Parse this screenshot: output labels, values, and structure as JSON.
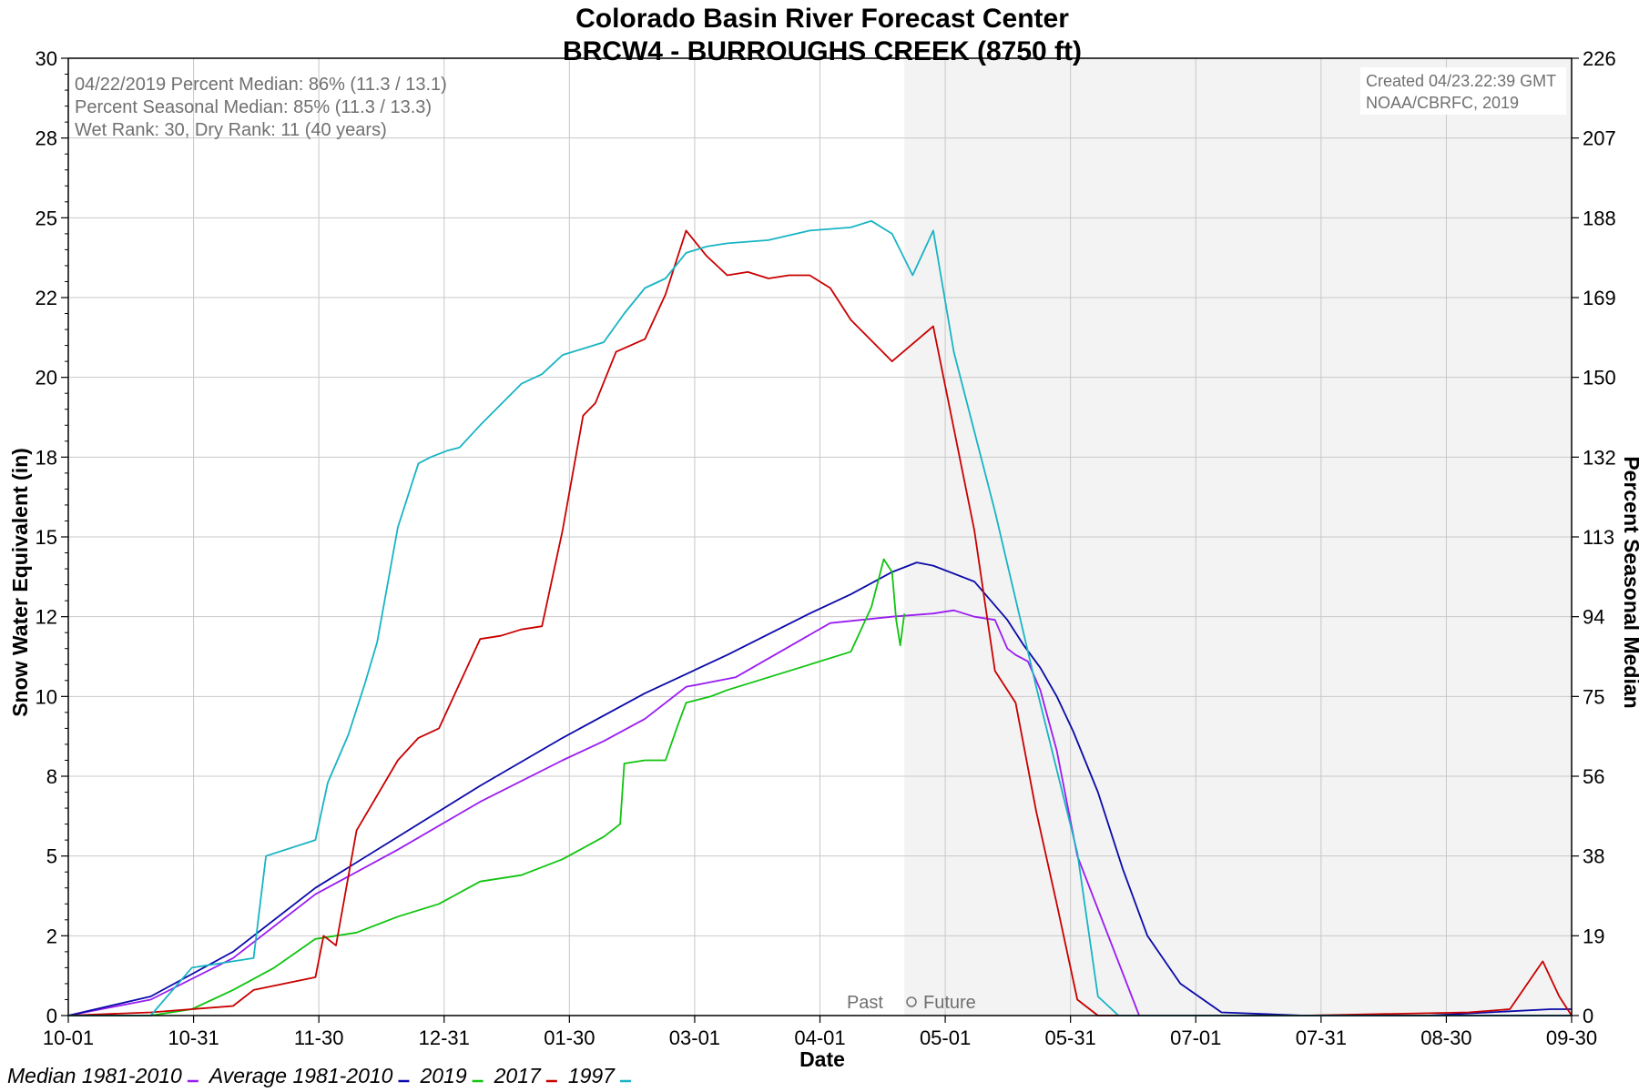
{
  "chart_data": {
    "type": "line",
    "title": "Colorado Basin River Forecast Center",
    "subtitle": "BRCW4 - BURROUGHS CREEK (8750 ft)",
    "xlabel": "Date",
    "ylabel": "Snow Water Equivalent (in)",
    "ylabel_right": "Percent Seasonal Median",
    "x_ticks": [
      "10-01",
      "10-31",
      "11-30",
      "12-31",
      "01-30",
      "03-01",
      "04-01",
      "05-01",
      "05-31",
      "07-01",
      "07-31",
      "08-30",
      "09-30"
    ],
    "ylim": [
      0,
      30
    ],
    "y_ticks": [
      "0",
      "2",
      "5",
      "8",
      "10",
      "12",
      "15",
      "18",
      "20",
      "22",
      "25",
      "28",
      "30"
    ],
    "y_right_ticks": [
      "0",
      "19",
      "38",
      "56",
      "75",
      "94",
      "113",
      "132",
      "150",
      "169",
      "188",
      "207",
      "226"
    ],
    "grid": true,
    "future_shading_start": "04-22",
    "past_label": "Past",
    "future_label": "Future",
    "info": [
      "04/22/2019 Percent Median: 86% (11.3 / 13.1)",
      "Percent Seasonal Median: 85% (11.3 / 13.3)",
      "Wet Rank: 30, Dry Rank: 11  (40 years)"
    ],
    "credit": [
      "Created 04/23.22:39 GMT",
      "NOAA/CBRFC, 2019"
    ],
    "legend_placement": "bottom",
    "series": [
      {
        "name": "Median 1981-2010",
        "color": "#9a1cf0",
        "x": [
          0,
          20,
          40,
          60,
          80,
          100,
          120,
          130,
          140,
          150,
          162,
          185,
          200,
          210,
          215,
          220,
          225,
          228,
          230,
          233,
          236,
          240,
          245,
          260,
          280,
          300,
          365
        ],
        "y": [
          0,
          0.5,
          1.8,
          3.8,
          5.2,
          6.7,
          8.0,
          8.6,
          9.3,
          10.3,
          10.6,
          12.3,
          12.5,
          12.6,
          12.7,
          12.5,
          12.4,
          11.5,
          11.3,
          11.1,
          10.2,
          8.3,
          5.0,
          0,
          0,
          0,
          0
        ]
      },
      {
        "name": "Average 1981-2010",
        "color": "#0a0aa8",
        "x": [
          0,
          20,
          40,
          60,
          80,
          100,
          120,
          140,
          160,
          180,
          190,
          200,
          206,
          210,
          220,
          228,
          232,
          236,
          240,
          244,
          250,
          256,
          262,
          270,
          280,
          300,
          330,
          360,
          365
        ],
        "y": [
          0,
          0.6,
          2.0,
          4.0,
          5.6,
          7.2,
          8.7,
          10.1,
          11.3,
          12.6,
          13.2,
          13.9,
          14.2,
          14.1,
          13.6,
          12.4,
          11.6,
          10.9,
          10.0,
          8.9,
          7.0,
          4.6,
          2.5,
          1.0,
          0.1,
          0,
          0,
          0.2,
          0.2
        ]
      },
      {
        "name": "2019",
        "color": "#10c410",
        "x": [
          0,
          20,
          30,
          40,
          50,
          60,
          70,
          80,
          90,
          100,
          110,
          120,
          130,
          134,
          135,
          140,
          145,
          148,
          150,
          156,
          160,
          170,
          180,
          190,
          195,
          198,
          200,
          201,
          202,
          203
        ],
        "y": [
          0,
          0,
          0.2,
          0.8,
          1.5,
          2.4,
          2.6,
          3.1,
          3.5,
          4.2,
          4.4,
          4.9,
          5.6,
          6.0,
          7.9,
          8.0,
          8.0,
          9.1,
          9.8,
          10.0,
          10.2,
          10.6,
          11.0,
          11.4,
          12.8,
          14.3,
          13.9,
          12.4,
          11.6,
          12.6
        ]
      },
      {
        "name": "2017",
        "color": "#c80000",
        "x": [
          0,
          20,
          40,
          45,
          60,
          62,
          65,
          70,
          80,
          85,
          90,
          100,
          105,
          110,
          115,
          120,
          125,
          128,
          133,
          140,
          145,
          150,
          155,
          160,
          165,
          170,
          175,
          180,
          185,
          190,
          200,
          210,
          220,
          225,
          230,
          235,
          240,
          245,
          250,
          255,
          260,
          265,
          280,
          300,
          340,
          350,
          358,
          362,
          365
        ],
        "y": [
          0,
          0.1,
          0.3,
          0.8,
          1.2,
          2.5,
          2.2,
          5.8,
          8.0,
          8.7,
          9.0,
          11.8,
          11.9,
          12.1,
          12.2,
          15.2,
          18.8,
          19.2,
          20.8,
          21.2,
          22.6,
          24.6,
          23.8,
          23.2,
          23.3,
          23.1,
          23.2,
          23.2,
          22.8,
          21.8,
          20.5,
          21.6,
          15.2,
          10.8,
          9.8,
          6.4,
          3.5,
          0.5,
          0,
          0,
          0,
          0,
          0,
          0,
          0.1,
          0.2,
          1.7,
          0.6,
          0
        ]
      },
      {
        "name": "1997",
        "color": "#18b4c4",
        "x": [
          0,
          20,
          30,
          40,
          45,
          48,
          60,
          63,
          68,
          72,
          75,
          80,
          85,
          88,
          92,
          95,
          100,
          110,
          115,
          120,
          125,
          130,
          135,
          140,
          145,
          150,
          155,
          160,
          170,
          180,
          190,
          195,
          200,
          205,
          210,
          215,
          225,
          235,
          245,
          250,
          255,
          260,
          365
        ],
        "y": [
          0,
          0,
          1.5,
          1.7,
          1.8,
          5.0,
          5.5,
          7.3,
          8.8,
          10.4,
          11.7,
          15.3,
          17.3,
          17.5,
          17.7,
          17.8,
          18.5,
          19.8,
          20.1,
          20.7,
          20.9,
          21.1,
          22.0,
          22.8,
          23.1,
          23.9,
          24.1,
          24.2,
          24.3,
          24.6,
          24.7,
          24.9,
          24.5,
          23.2,
          24.6,
          20.8,
          15.8,
          10.3,
          5.1,
          0.6,
          0,
          0,
          0
        ]
      }
    ]
  }
}
